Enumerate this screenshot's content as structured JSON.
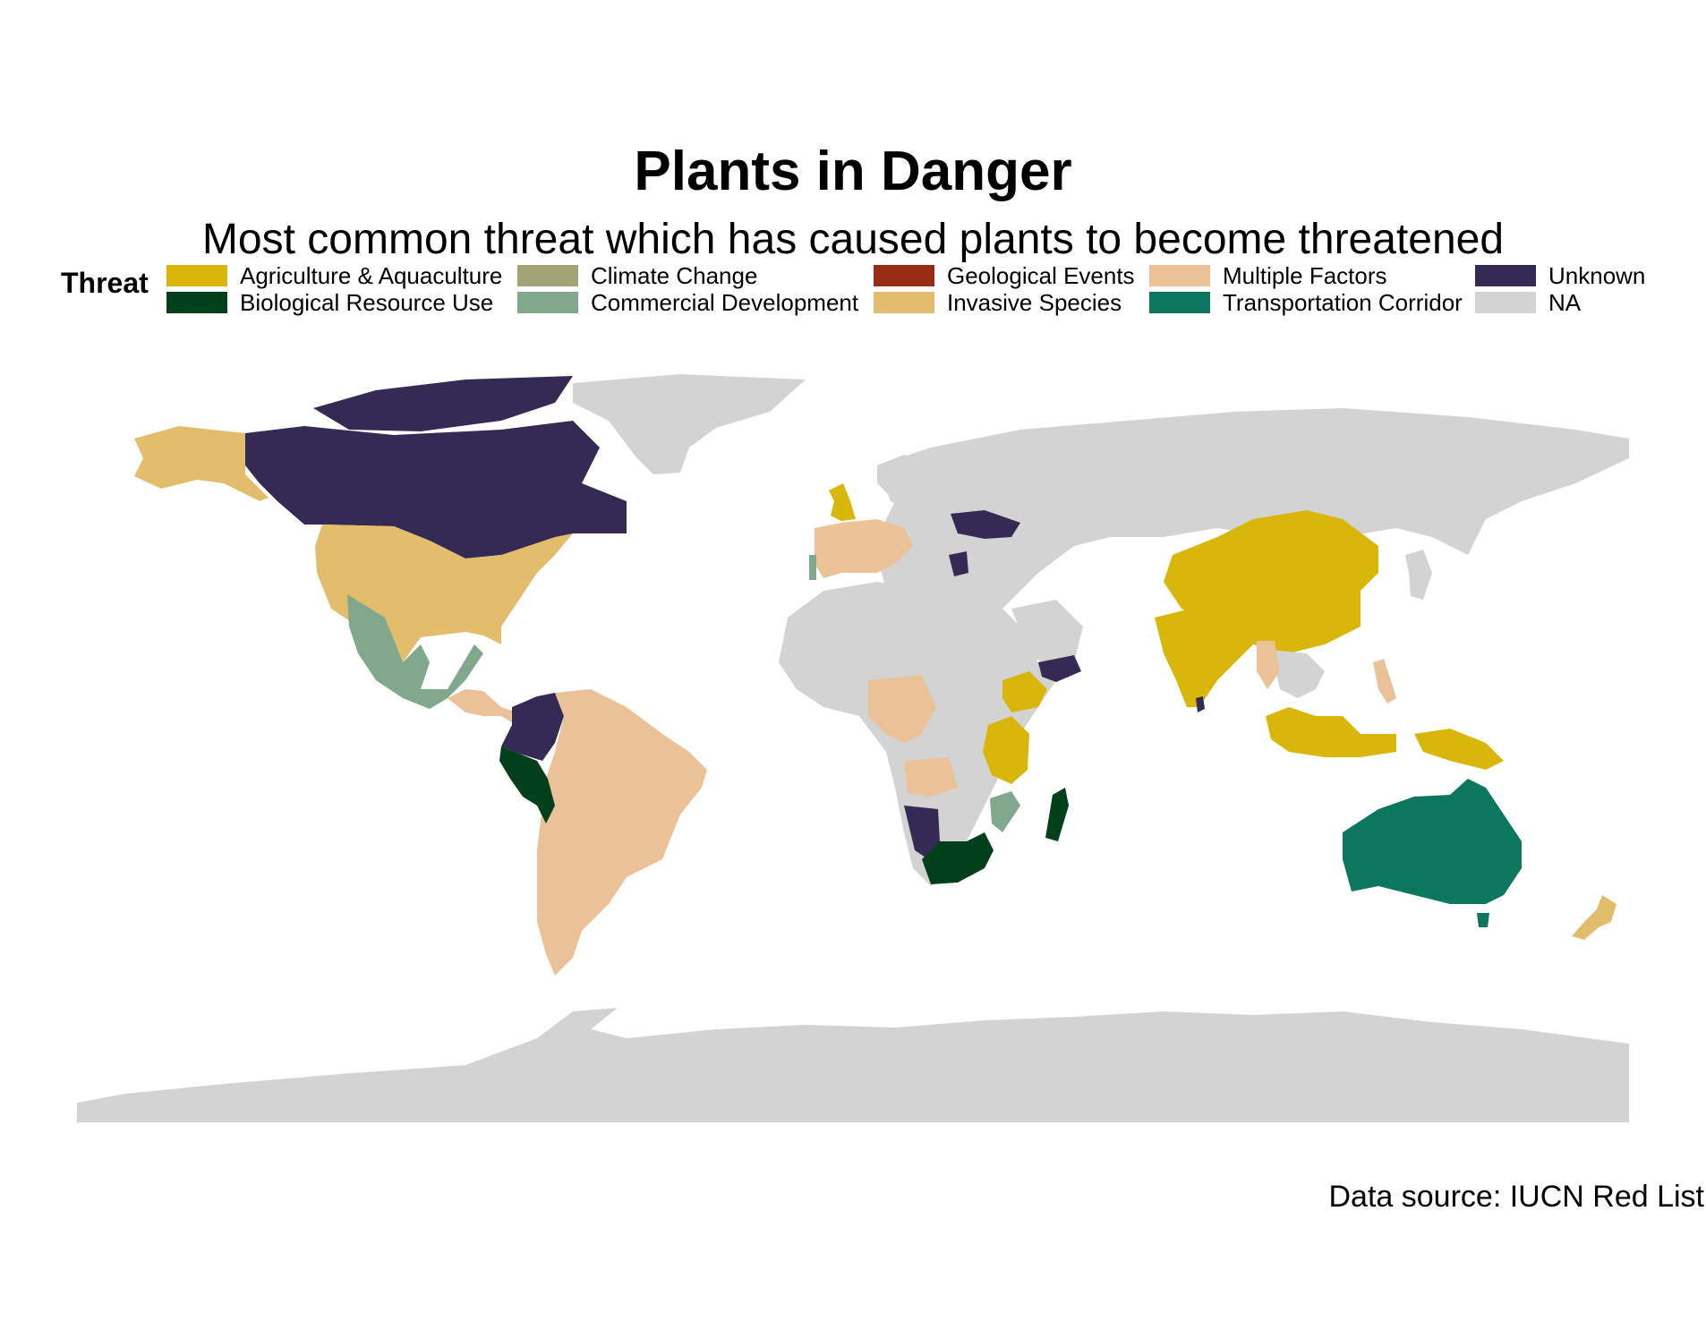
{
  "title": "Plants in Danger",
  "subtitle": "Most common threat which has caused plants to become threatened",
  "caption": "Data source: IUCN Red List",
  "legend": {
    "title": "Threat",
    "items": [
      {
        "label": "Agriculture & Aquaculture",
        "color": "#D8B70A"
      },
      {
        "label": "Biological Resource Use",
        "color": "#02401B"
      },
      {
        "label": "Climate Change",
        "color": "#A2A475"
      },
      {
        "label": "Commercial Development",
        "color": "#81A88D"
      },
      {
        "label": "Geological Events",
        "color": "#972D15"
      },
      {
        "label": "Invasive Species",
        "color": "#E2BD6C"
      },
      {
        "label": "Multiple Factors",
        "color": "#EBC298"
      },
      {
        "label": "Transportation Corridor",
        "color": "#0C775E"
      },
      {
        "label": "Unknown",
        "color": "#352A53"
      },
      {
        "label": "NA",
        "color": "#D3D3D3"
      }
    ]
  },
  "regions": [
    {
      "name": "Antarctica",
      "threat": "NA"
    },
    {
      "name": "Greenland",
      "threat": "NA"
    },
    {
      "name": "Canada",
      "threat": "Unknown"
    },
    {
      "name": "Alaska",
      "threat": "Invasive Species"
    },
    {
      "name": "United States",
      "threat": "Invasive Species"
    },
    {
      "name": "Mexico",
      "threat": "Commercial Development"
    },
    {
      "name": "Central America",
      "threat": "Multiple Factors"
    },
    {
      "name": "Colombia",
      "threat": "Unknown"
    },
    {
      "name": "Peru",
      "threat": "Biological Resource Use"
    },
    {
      "name": "South America",
      "threat": "Multiple Factors"
    },
    {
      "name": "United Kingdom",
      "threat": "Agriculture & Aquaculture"
    },
    {
      "name": "Western Europe",
      "threat": "Multiple Factors"
    },
    {
      "name": "Portugal",
      "threat": "Commercial Development"
    },
    {
      "name": "Ukraine",
      "threat": "Unknown"
    },
    {
      "name": "Greece",
      "threat": "Unknown"
    },
    {
      "name": "Russia",
      "threat": "NA"
    },
    {
      "name": "Africa",
      "threat": "NA"
    },
    {
      "name": "Ethiopia",
      "threat": "Agriculture & Aquaculture"
    },
    {
      "name": "Tanzania",
      "threat": "Agriculture & Aquaculture"
    },
    {
      "name": "Congo Basin",
      "threat": "Multiple Factors"
    },
    {
      "name": "Namibia",
      "threat": "Unknown"
    },
    {
      "name": "South Africa",
      "threat": "Biological Resource Use"
    },
    {
      "name": "Mozambique",
      "threat": "Commercial Development"
    },
    {
      "name": "Madagascar",
      "threat": "Biological Resource Use"
    },
    {
      "name": "Yemen",
      "threat": "Unknown"
    },
    {
      "name": "China",
      "threat": "Agriculture & Aquaculture"
    },
    {
      "name": "India",
      "threat": "Agriculture & Aquaculture"
    },
    {
      "name": "Sri Lanka",
      "threat": "Unknown"
    },
    {
      "name": "Indochina",
      "threat": "NA"
    },
    {
      "name": "Myanmar",
      "threat": "Multiple Factors"
    },
    {
      "name": "Indonesia",
      "threat": "Agriculture & Aquaculture"
    },
    {
      "name": "Papua New Guinea",
      "threat": "Agriculture & Aquaculture"
    },
    {
      "name": "Philippines",
      "threat": "Multiple Factors"
    },
    {
      "name": "Japan",
      "threat": "NA"
    },
    {
      "name": "Australia",
      "threat": "Transportation Corridor"
    },
    {
      "name": "New Zealand",
      "threat": "Invasive Species"
    }
  ]
}
